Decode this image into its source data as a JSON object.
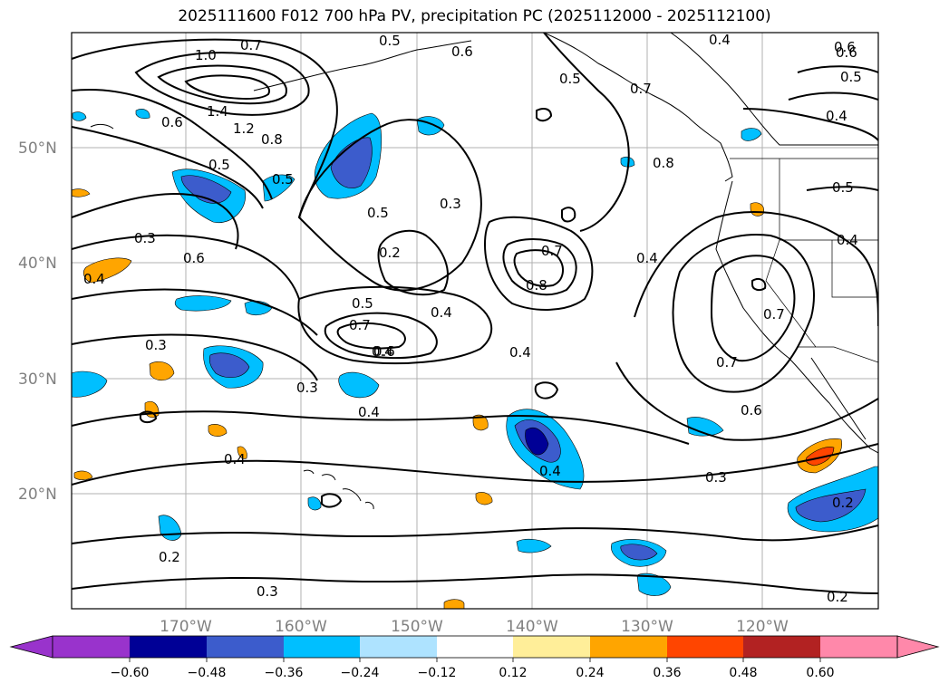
{
  "title": "2025111600 F012 700 hPa PV, precipitation PC (2025112000 - 2025112100)",
  "map": {
    "projection": "PlateCarree",
    "region": "North Pacific",
    "grid": true,
    "lon_labels": [
      "170°W",
      "160°W",
      "150°W",
      "140°W",
      "130°W",
      "120°W"
    ],
    "lat_labels": [
      "50°N",
      "40°N",
      "30°N",
      "20°N"
    ],
    "lon_range": [
      -180,
      -110
    ],
    "lat_range": [
      10,
      60
    ]
  },
  "pv_contour_labels": [
    "1.0",
    "0.7",
    "0.5",
    "0.6",
    "0.4",
    "0.6",
    "0.5",
    "1.4",
    "1.2",
    "0.8",
    "0.6",
    "0.5",
    "0.5",
    "0.3",
    "0.2",
    "0.3",
    "0.5",
    "0.7",
    "0.8",
    "0.4",
    "0.4",
    "0.5",
    "0.8",
    "0.3",
    "0.4",
    "0.6",
    "0.7",
    "0.5",
    "0.4",
    "0.4",
    "0.7",
    "0.6",
    "0.4",
    "0.3",
    "0.4",
    "0.4",
    "0.3",
    "0.2",
    "0.2",
    "0.3",
    "0.2",
    "0.7",
    "0.6",
    "0.4",
    "0.6",
    "0.7",
    "0.5",
    "0.4"
  ],
  "colorbar": {
    "ticks": [
      "−0.60",
      "−0.48",
      "−0.36",
      "−0.24",
      "−0.12",
      "0.12",
      "0.24",
      "0.36",
      "0.48",
      "0.60"
    ],
    "colors": [
      "#9933cc",
      "#000096",
      "#3c5ccc",
      "#00bfff",
      "#aee3ff",
      "#ffffff",
      "#ffee99",
      "#ffa500",
      "#ff4500",
      "#b22222",
      "#ff88aa"
    ],
    "extend": "both"
  }
}
